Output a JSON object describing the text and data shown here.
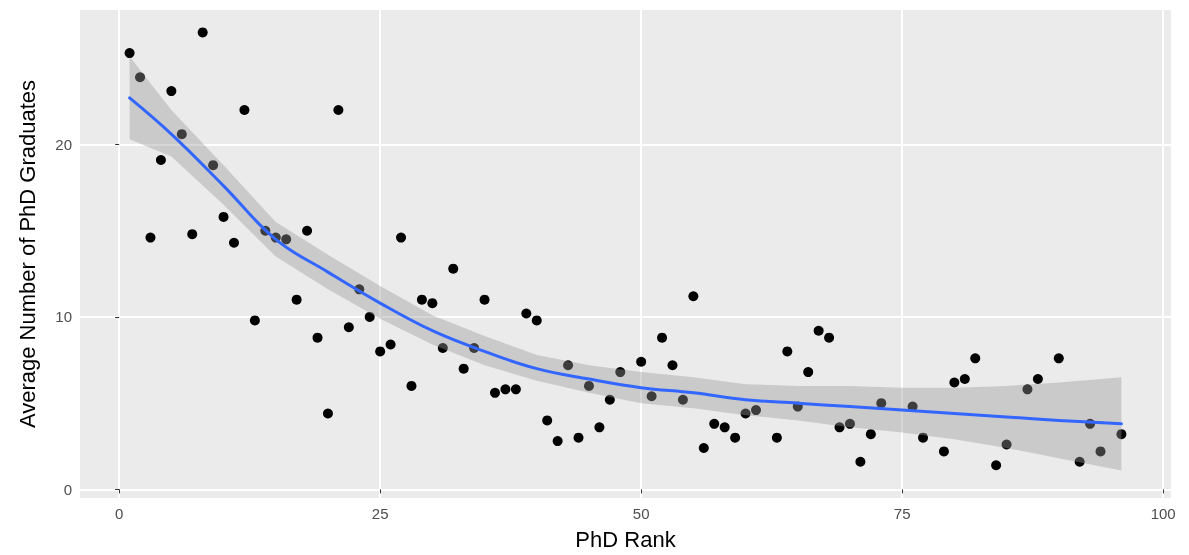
{
  "chart_data": {
    "type": "scatter",
    "xlabel": "PhD Rank",
    "ylabel": "Average Number of PhD Graduates",
    "xlim": [
      -3.75,
      100.75
    ],
    "ylim": [
      -0.5,
      27.8
    ],
    "xticks": [
      0,
      25,
      50,
      75,
      100
    ],
    "yticks": [
      0,
      10,
      20
    ],
    "grid": true,
    "marker": "circle",
    "series": [
      {
        "color": "#000000",
        "x": [
          1,
          2,
          3,
          4,
          5,
          6,
          7,
          8,
          9,
          10,
          11,
          12,
          13,
          14,
          15,
          16,
          17,
          18,
          19,
          20,
          21,
          22,
          23,
          24,
          25,
          26,
          27,
          28,
          29,
          30,
          31,
          32,
          33,
          34,
          35,
          36,
          37,
          38,
          39,
          40,
          41,
          42,
          43,
          44,
          45,
          46,
          47,
          48,
          50,
          51,
          52,
          53,
          54,
          55,
          56,
          57,
          58,
          59,
          60,
          61,
          63,
          64,
          65,
          66,
          67,
          68,
          69,
          70,
          71,
          72,
          73,
          76,
          77,
          79,
          80,
          81,
          82,
          84,
          85,
          87,
          88,
          90,
          92,
          93,
          94,
          96
        ],
        "values": [
          25.3,
          23.9,
          14.6,
          19.1,
          23.1,
          20.6,
          14.8,
          26.5,
          18.8,
          15.8,
          14.3,
          22.0,
          9.8,
          15.0,
          14.6,
          14.5,
          11.0,
          15.0,
          8.8,
          4.4,
          22.0,
          9.4,
          11.6,
          10.0,
          8.0,
          8.4,
          14.6,
          6.0,
          11.0,
          10.8,
          8.2,
          12.8,
          7.0,
          8.2,
          11.0,
          5.6,
          5.8,
          5.8,
          10.2,
          9.8,
          4.0,
          2.8,
          7.2,
          3.0,
          6.0,
          3.6,
          5.2,
          6.8,
          7.4,
          5.4,
          8.8,
          7.2,
          5.2,
          11.2,
          2.4,
          3.8,
          3.6,
          3.0,
          4.4,
          4.6,
          3.0,
          8.0,
          4.8,
          6.8,
          9.2,
          8.8,
          3.6,
          3.8,
          1.6,
          3.2,
          5.0,
          4.8,
          3.0,
          2.2,
          6.2,
          6.4,
          7.6,
          1.4,
          2.6,
          5.8,
          6.4,
          7.6,
          1.6,
          3.8,
          2.2,
          3.2
        ]
      },
      {
        "type": "line",
        "color": "#3366ff",
        "line_style": "solid",
        "marker": "none",
        "x": [
          1,
          5,
          10,
          15,
          20,
          25,
          30,
          35,
          40,
          45,
          50,
          55,
          60,
          65,
          70,
          75,
          80,
          85,
          90,
          96
        ],
        "values": [
          22.7,
          20.6,
          17.6,
          14.5,
          12.6,
          10.8,
          9.2,
          8.0,
          7.0,
          6.4,
          5.9,
          5.6,
          5.2,
          5.0,
          4.8,
          4.6,
          4.4,
          4.2,
          4.0,
          3.8
        ],
        "lower": [
          20.3,
          19.3,
          16.5,
          13.5,
          11.6,
          9.9,
          8.4,
          7.2,
          6.3,
          5.6,
          5.0,
          4.7,
          4.3,
          4.0,
          3.6,
          3.3,
          2.9,
          2.4,
          1.8,
          1.1
        ],
        "upper": [
          25.1,
          22.0,
          18.8,
          15.5,
          13.6,
          11.8,
          10.1,
          8.9,
          7.8,
          7.2,
          6.8,
          6.5,
          6.1,
          6.0,
          6.0,
          5.9,
          5.9,
          6.0,
          6.2,
          6.5
        ]
      }
    ]
  }
}
